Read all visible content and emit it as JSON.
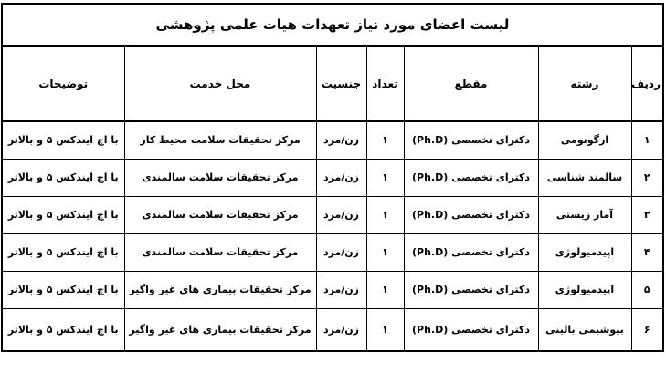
{
  "page": {
    "title": "لیست اعضای مورد نیاز تعهدات هیات علمی پژوهشی"
  },
  "table": {
    "headers": [
      "ردیف",
      "رشته",
      "مقطع",
      "تعداد",
      "جنسیت",
      "محل خدمت",
      "توضیحات"
    ],
    "rows": [
      [
        "۱",
        "ارگونومی",
        "دکترای تخصصی (Ph.D)",
        "۱",
        "زن/مرد",
        "مرکز تحقیقات سلامت محیط کار",
        "با اچ ایندکس ۵ و بالاتر"
      ],
      [
        "۲",
        "سالمند شناسی",
        "دکترای تخصصی (Ph.D)",
        "۱",
        "زن/مرد",
        "مرکز تحقیقات سلامت سالمندی",
        "با اچ ایندکس ۵ و بالاتر"
      ],
      [
        "۳",
        "آمار زیستی",
        "دکترای تخصصی (Ph.D)",
        "۱",
        "زن/مرد",
        "مرکز تحقیقات سلامت سالمندی",
        "با اچ ایندکس ۵ و بالاتر"
      ],
      [
        "۴",
        "اپیدمیولوژی",
        "دکترای تخصصی (Ph.D)",
        "۱",
        "زن/مرد",
        "مرکز تحقیقات سلامت سالمندی",
        "با اچ ایندکس ۵ و بالاتر"
      ],
      [
        "۵",
        "اپیدمیولوژی",
        "دکترای تخصصی (Ph.D)",
        "۱",
        "زن/مرد",
        "مرکز تحقیقات بیماری های غیر واگیر",
        "با اچ ایندکس ۵ و بالاتر"
      ],
      [
        "۶",
        "بیوشیمی بالینی",
        "دکترای تخصصی (Ph.D)",
        "۱",
        "زن/مرد",
        "مرکز تحقیقات بیماری های غیر واگیر",
        "با اچ ایندکس ۵ و بالاتر"
      ]
    ]
  }
}
